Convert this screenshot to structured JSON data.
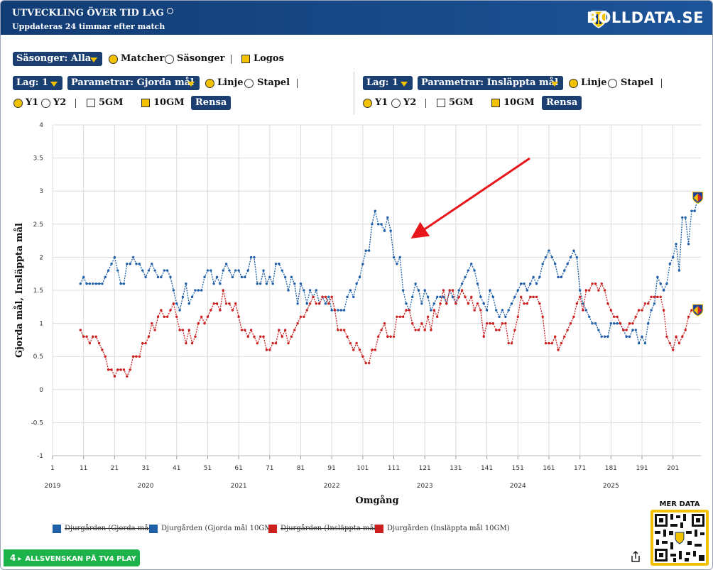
{
  "header": {
    "title": "UTVECKLING ÖVER TID LAG",
    "subtitle": "Uppdateras 24 timmar efter match",
    "brand": "BOLLDATA.SE"
  },
  "controls": {
    "seasons_dropdown": "Säsonger: Alla",
    "mode_options": [
      "Matcher",
      "Säsonger"
    ],
    "logos": "Logos",
    "left": {
      "team": "Lag: 1",
      "parameter": "Parametrar: Gjorda mål",
      "style_options": [
        "Linje",
        "Stapel"
      ],
      "axis_options": [
        "Y1",
        "Y2"
      ],
      "averages": [
        "5GM",
        "10GM"
      ],
      "clear": "Rensa"
    },
    "right": {
      "team": "Lag: 1",
      "parameter": "Parametrar: Insläppta mål",
      "style_options": [
        "Linje",
        "Stapel"
      ],
      "axis_options": [
        "Y1",
        "Y2"
      ],
      "averages": [
        "5GM",
        "10GM"
      ],
      "clear": "Rensa"
    }
  },
  "chart_data": {
    "type": "line",
    "x_label": "Omgång",
    "y_label": "Gjorda mål, Insläppta mål",
    "xlim": [
      1,
      210
    ],
    "xticks": [
      1,
      11,
      21,
      31,
      41,
      51,
      61,
      71,
      81,
      91,
      101,
      111,
      121,
      131,
      141,
      151,
      161,
      171,
      181,
      191,
      201
    ],
    "year_ticks": [
      {
        "value": 1,
        "label": "2019"
      },
      {
        "value": 31,
        "label": "2020"
      },
      {
        "value": 61,
        "label": "2021"
      },
      {
        "value": 91,
        "label": "2022"
      },
      {
        "value": 121,
        "label": "2023"
      },
      {
        "value": 151,
        "label": "2024"
      },
      {
        "value": 181,
        "label": "2025"
      }
    ],
    "ylim": [
      -1,
      4
    ],
    "yticks": [
      -1,
      -0.5,
      0,
      0.5,
      1,
      1.5,
      2,
      2.5,
      3,
      3.5,
      4
    ],
    "grid": true,
    "x": [
      10,
      11,
      12,
      13,
      14,
      15,
      16,
      17,
      18,
      19,
      20,
      21,
      22,
      23,
      24,
      25,
      26,
      27,
      28,
      29,
      30,
      31,
      32,
      33,
      34,
      35,
      36,
      37,
      38,
      39,
      40,
      41,
      42,
      43,
      44,
      45,
      46,
      47,
      48,
      49,
      50,
      51,
      52,
      53,
      54,
      55,
      56,
      57,
      58,
      59,
      60,
      61,
      62,
      63,
      64,
      65,
      66,
      67,
      68,
      69,
      70,
      71,
      72,
      73,
      74,
      75,
      76,
      77,
      78,
      79,
      80,
      81,
      82,
      83,
      84,
      85,
      86,
      87,
      88,
      89,
      90,
      91,
      92,
      93,
      94,
      95,
      96,
      97,
      98,
      99,
      100,
      101,
      102,
      103,
      104,
      105,
      106,
      107,
      108,
      109,
      110,
      111,
      112,
      113,
      114,
      115,
      116,
      117,
      118,
      119,
      120,
      121,
      122,
      123,
      124,
      125,
      126,
      127,
      128,
      129,
      130,
      131,
      132,
      133,
      134,
      135,
      136,
      137,
      138,
      139,
      140,
      141,
      142,
      143,
      144,
      145,
      146,
      147,
      148,
      149,
      150,
      151,
      152,
      153,
      154,
      155,
      156,
      157,
      158,
      159,
      160,
      161,
      162,
      163,
      164,
      165,
      166,
      167,
      168,
      169,
      170,
      171,
      172,
      173,
      174,
      175,
      176,
      177,
      178,
      179,
      180,
      181,
      182,
      183,
      184,
      185,
      186,
      187,
      188,
      189,
      190,
      191,
      192,
      193,
      194,
      195,
      196,
      197,
      198,
      199,
      200,
      201,
      202,
      203,
      204,
      205,
      206,
      207,
      208,
      209
    ],
    "series": [
      {
        "name": "Djurgården (Gjorda mål)",
        "color": "#1f5fa8",
        "visible": false
      },
      {
        "name": "Djurgården (Gjorda mål 10GM)",
        "color": "#1f5fa8",
        "visible": true,
        "values": [
          1.6,
          1.7,
          1.6,
          1.6,
          1.6,
          1.6,
          1.6,
          1.6,
          1.7,
          1.8,
          1.9,
          2.0,
          1.8,
          1.6,
          1.6,
          1.9,
          1.9,
          2.0,
          1.9,
          1.9,
          1.8,
          1.7,
          1.8,
          1.9,
          1.8,
          1.7,
          1.7,
          1.8,
          1.8,
          1.7,
          1.5,
          1.3,
          1.2,
          1.4,
          1.6,
          1.3,
          1.4,
          1.5,
          1.5,
          1.5,
          1.7,
          1.8,
          1.8,
          1.6,
          1.7,
          1.6,
          1.8,
          1.9,
          1.8,
          1.7,
          1.8,
          1.8,
          1.7,
          1.7,
          1.8,
          2.0,
          2.0,
          1.6,
          1.6,
          1.8,
          1.6,
          1.7,
          1.6,
          1.9,
          1.9,
          1.8,
          1.7,
          1.5,
          1.7,
          1.6,
          1.3,
          1.6,
          1.5,
          1.3,
          1.5,
          1.4,
          1.5,
          1.3,
          1.4,
          1.3,
          1.4,
          1.2,
          1.2,
          1.2,
          1.2,
          1.2,
          1.4,
          1.5,
          1.4,
          1.6,
          1.7,
          1.9,
          2.1,
          2.1,
          2.5,
          2.7,
          2.5,
          2.5,
          2.4,
          2.6,
          2.4,
          2.0,
          1.9,
          2.0,
          1.5,
          1.3,
          1.2,
          1.4,
          1.6,
          1.5,
          1.3,
          1.5,
          1.4,
          1.2,
          1.3,
          1.4,
          1.4,
          1.4,
          1.3,
          1.5,
          1.4,
          1.3,
          1.5,
          1.6,
          1.7,
          1.8,
          1.9,
          1.8,
          1.6,
          1.4,
          1.3,
          1.2,
          1.5,
          1.4,
          1.2,
          1.1,
          1.2,
          1.1,
          1.2,
          1.3,
          1.4,
          1.5,
          1.6,
          1.6,
          1.5,
          1.6,
          1.7,
          1.6,
          1.7,
          1.9,
          2.0,
          2.1,
          2.0,
          1.9,
          1.7,
          1.7,
          1.8,
          1.9,
          2.0,
          2.1,
          2.0,
          1.5,
          1.3,
          1.2,
          1.1,
          1.0,
          1.0,
          0.9,
          0.8,
          0.8,
          0.8,
          1.0,
          1.0,
          1.0,
          1.0,
          0.9,
          0.8,
          0.8,
          0.9,
          0.9,
          0.7,
          0.8,
          0.7,
          1.0,
          1.2,
          1.3,
          1.7,
          1.6,
          1.5,
          1.6,
          1.9,
          2.0,
          2.2,
          1.8,
          2.6,
          2.6,
          2.2,
          2.7,
          2.7,
          2.9
        ]
      },
      {
        "name": "Djurgården (Insläppta mål)",
        "color": "#cc1f1f",
        "visible": false
      },
      {
        "name": "Djurgården (Insläppta mål 10GM)",
        "color": "#cc1f1f",
        "visible": true,
        "values": [
          0.9,
          0.8,
          0.8,
          0.7,
          0.8,
          0.8,
          0.7,
          0.6,
          0.5,
          0.3,
          0.3,
          0.2,
          0.3,
          0.3,
          0.3,
          0.2,
          0.3,
          0.5,
          0.5,
          0.5,
          0.7,
          0.7,
          0.8,
          1.0,
          0.9,
          1.1,
          1.2,
          1.1,
          1.1,
          1.2,
          1.3,
          1.1,
          0.9,
          0.9,
          0.7,
          0.9,
          0.7,
          0.8,
          1.0,
          1.1,
          1.0,
          1.1,
          1.2,
          1.3,
          1.3,
          1.2,
          1.5,
          1.3,
          1.3,
          1.2,
          1.3,
          1.1,
          0.9,
          0.9,
          0.8,
          0.9,
          0.8,
          0.7,
          0.8,
          0.8,
          0.6,
          0.6,
          0.7,
          0.7,
          0.9,
          0.8,
          0.9,
          0.7,
          0.8,
          0.9,
          1.0,
          1.1,
          1.1,
          1.2,
          1.3,
          1.4,
          1.3,
          1.3,
          1.4,
          1.4,
          1.3,
          1.4,
          1.2,
          0.9,
          0.9,
          0.9,
          0.8,
          0.7,
          0.6,
          0.7,
          0.6,
          0.5,
          0.4,
          0.4,
          0.6,
          0.6,
          0.8,
          0.9,
          1.0,
          0.8,
          0.8,
          0.8,
          1.1,
          1.1,
          1.1,
          1.2,
          1.2,
          1.0,
          0.9,
          0.9,
          1.0,
          0.9,
          1.1,
          0.9,
          1.2,
          1.1,
          1.3,
          1.5,
          1.3,
          1.5,
          1.5,
          1.3,
          1.4,
          1.5,
          1.4,
          1.3,
          1.4,
          1.2,
          1.3,
          1.2,
          0.8,
          1.0,
          1.0,
          1.0,
          0.9,
          0.9,
          1.0,
          1.0,
          0.7,
          0.7,
          0.9,
          1.1,
          1.4,
          1.3,
          1.3,
          1.4,
          1.4,
          1.4,
          1.3,
          1.1,
          0.7,
          0.7,
          0.7,
          0.8,
          0.6,
          0.7,
          0.8,
          0.9,
          1.0,
          1.1,
          1.3,
          1.4,
          1.2,
          1.5,
          1.5,
          1.6,
          1.6,
          1.5,
          1.6,
          1.5,
          1.3,
          1.2,
          1.1,
          1.1,
          1.0,
          0.9,
          0.9,
          1.0,
          1.0,
          1.1,
          1.2,
          1.2,
          1.3,
          1.3,
          1.4,
          1.4,
          1.4,
          1.4,
          1.2,
          0.8,
          0.7,
          0.6,
          0.8,
          0.7,
          0.8,
          0.9,
          1.1,
          1.2,
          1.2,
          1.2
        ]
      }
    ]
  },
  "footer": {
    "badge": "4",
    "promo": "ALLSVENSKAN PÅ TV4 PLAY",
    "more": "MER DATA"
  }
}
